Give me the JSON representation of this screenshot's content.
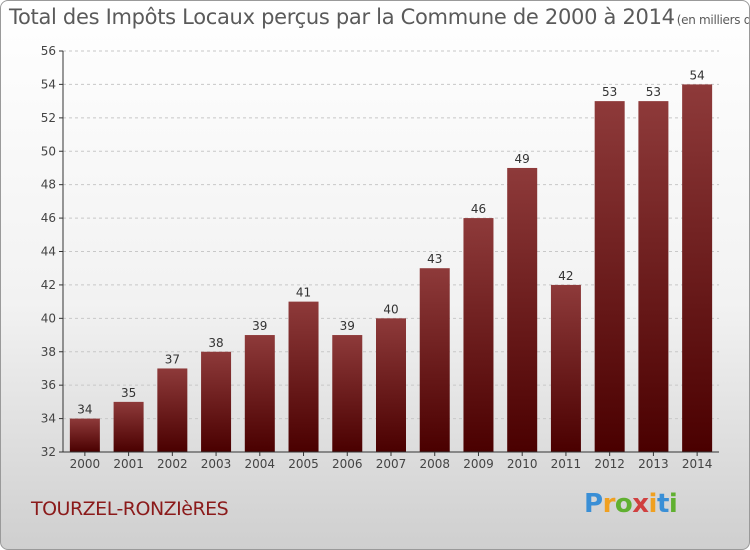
{
  "title": "Total des Impôts Locaux perçus par la Commune de 2000 à 2014",
  "title_unit": "(en milliers d'€)",
  "commune": "TOURZEL-RONZIèRES",
  "logo": {
    "letters": [
      "P",
      "r",
      "o",
      "x",
      "i",
      "t",
      "i"
    ],
    "colors": [
      "#3a8fd6",
      "#f0a020",
      "#60b030",
      "#d04040",
      "#f0a020",
      "#3a8fd6",
      "#60b030"
    ]
  },
  "colors": {
    "bar_top": "#8e3a3a",
    "bar_bottom": "#4a0000",
    "axis": "#333333",
    "grid": "#c8c8c8"
  },
  "chart_data": {
    "type": "bar",
    "categories": [
      "2000",
      "2001",
      "2002",
      "2003",
      "2004",
      "2005",
      "2006",
      "2007",
      "2008",
      "2009",
      "2010",
      "2011",
      "2012",
      "2013",
      "2014"
    ],
    "values": [
      34,
      35,
      37,
      38,
      39,
      41,
      39,
      40,
      43,
      46,
      49,
      42,
      53,
      53,
      54
    ],
    "ylim": [
      32,
      56
    ],
    "yticks": [
      32,
      34,
      36,
      38,
      40,
      42,
      44,
      46,
      48,
      50,
      52,
      54,
      56
    ],
    "grid": true
  }
}
